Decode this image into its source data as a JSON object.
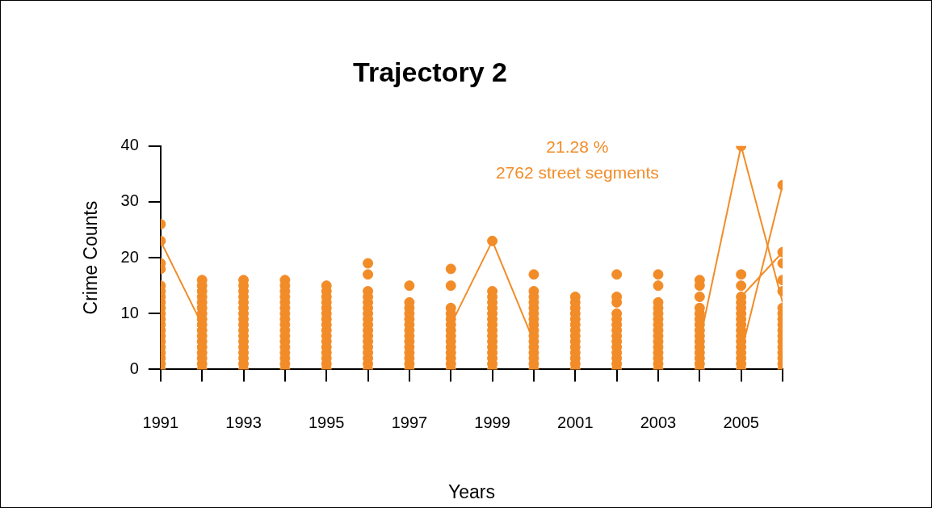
{
  "chart_data": {
    "type": "scatter",
    "title": "Trajectory 2",
    "xlabel": "Years",
    "ylabel": "Crime Counts",
    "annotations": [
      "21.28 %",
      "2762 street segments"
    ],
    "xlim": [
      1991,
      2006
    ],
    "ylim": [
      0,
      40
    ],
    "xticks": [
      1991,
      {
        "value": 1992,
        "label": null
      },
      1993,
      {
        "value": 1994,
        "label": null
      },
      1995,
      {
        "value": 1996,
        "label": null
      },
      1997,
      {
        "value": 1998,
        "label": null
      },
      1999,
      {
        "value": 2000,
        "label": null
      },
      2001,
      {
        "value": 2002,
        "label": null
      },
      2003,
      {
        "value": 2004,
        "label": null
      },
      2005,
      {
        "value": 2006,
        "label": null
      }
    ],
    "yticks": [
      0,
      10,
      20,
      30,
      40
    ],
    "grid": false,
    "legend": false,
    "marker": "circle",
    "series": [
      {
        "type": "line",
        "marker": "none",
        "color": "#f28c28",
        "x": [
          1991,
          1992
        ],
        "values": [
          23,
          8
        ]
      },
      {
        "type": "line",
        "marker": "none",
        "color": "#f28c28",
        "x": [
          1998,
          1999,
          2000
        ],
        "values": [
          8,
          23,
          5
        ]
      },
      {
        "type": "line",
        "marker": "none",
        "color": "#f28c28",
        "x": [
          2004,
          2005,
          2006
        ],
        "values": [
          5,
          40,
          12
        ]
      },
      {
        "type": "line",
        "marker": "none",
        "color": "#f28c28",
        "x": [
          2005,
          2006
        ],
        "values": [
          3,
          33
        ]
      },
      {
        "type": "line",
        "marker": "none",
        "color": "#f28c28",
        "x": [
          2005,
          2006
        ],
        "values": [
          13,
          21
        ]
      },
      {
        "color": "#f28c28",
        "x": [
          1991,
          1991,
          1991,
          1991,
          1991,
          1991,
          1991,
          1991,
          1991,
          1991,
          1991,
          1991,
          1991,
          1991,
          1991,
          1991,
          1991,
          1991,
          1991,
          1991
        ],
        "values": [
          0,
          1,
          2,
          3,
          4,
          5,
          6,
          7,
          8,
          9,
          10,
          11,
          12,
          13,
          14,
          15,
          18,
          19,
          23,
          26
        ]
      },
      {
        "color": "#f28c28",
        "x": [
          1992,
          1992,
          1992,
          1992,
          1992,
          1992,
          1992,
          1992,
          1992,
          1992,
          1992,
          1992,
          1992,
          1992,
          1992,
          1992,
          1992
        ],
        "values": [
          0,
          1,
          2,
          3,
          4,
          5,
          6,
          7,
          8,
          9,
          10,
          11,
          12,
          13,
          14,
          15,
          16
        ]
      },
      {
        "color": "#f28c28",
        "x": [
          1993,
          1993,
          1993,
          1993,
          1993,
          1993,
          1993,
          1993,
          1993,
          1993,
          1993,
          1993,
          1993,
          1993,
          1993,
          1993,
          1993
        ],
        "values": [
          0,
          1,
          2,
          3,
          4,
          5,
          6,
          7,
          8,
          9,
          10,
          11,
          12,
          13,
          14,
          15,
          16
        ]
      },
      {
        "color": "#f28c28",
        "x": [
          1994,
          1994,
          1994,
          1994,
          1994,
          1994,
          1994,
          1994,
          1994,
          1994,
          1994,
          1994,
          1994,
          1994,
          1994,
          1994,
          1994
        ],
        "values": [
          0,
          1,
          2,
          3,
          4,
          5,
          6,
          7,
          8,
          9,
          10,
          11,
          12,
          13,
          14,
          15,
          16
        ]
      },
      {
        "color": "#f28c28",
        "x": [
          1995,
          1995,
          1995,
          1995,
          1995,
          1995,
          1995,
          1995,
          1995,
          1995,
          1995,
          1995,
          1995,
          1995,
          1995,
          1995
        ],
        "values": [
          0,
          1,
          2,
          3,
          4,
          5,
          6,
          7,
          8,
          9,
          10,
          11,
          12,
          13,
          14,
          15
        ]
      },
      {
        "color": "#f28c28",
        "x": [
          1996,
          1996,
          1996,
          1996,
          1996,
          1996,
          1996,
          1996,
          1996,
          1996,
          1996,
          1996,
          1996,
          1996,
          1996,
          1996,
          1996
        ],
        "values": [
          0,
          1,
          2,
          3,
          4,
          5,
          6,
          7,
          8,
          9,
          10,
          11,
          12,
          13,
          14,
          17,
          19
        ]
      },
      {
        "color": "#f28c28",
        "x": [
          1997,
          1997,
          1997,
          1997,
          1997,
          1997,
          1997,
          1997,
          1997,
          1997,
          1997,
          1997,
          1997,
          1997
        ],
        "values": [
          0,
          1,
          2,
          3,
          4,
          5,
          6,
          7,
          8,
          9,
          10,
          11,
          12,
          15
        ]
      },
      {
        "color": "#f28c28",
        "x": [
          1998,
          1998,
          1998,
          1998,
          1998,
          1998,
          1998,
          1998,
          1998,
          1998,
          1998,
          1998,
          1998,
          1998
        ],
        "values": [
          0,
          1,
          2,
          3,
          4,
          5,
          6,
          7,
          8,
          9,
          10,
          11,
          15,
          18
        ]
      },
      {
        "color": "#f28c28",
        "x": [
          1999,
          1999,
          1999,
          1999,
          1999,
          1999,
          1999,
          1999,
          1999,
          1999,
          1999,
          1999,
          1999,
          1999,
          1999,
          1999
        ],
        "values": [
          0,
          1,
          2,
          3,
          4,
          5,
          6,
          7,
          8,
          9,
          10,
          11,
          12,
          13,
          14,
          23
        ]
      },
      {
        "color": "#f28c28",
        "x": [
          2000,
          2000,
          2000,
          2000,
          2000,
          2000,
          2000,
          2000,
          2000,
          2000,
          2000,
          2000,
          2000,
          2000,
          2000,
          2000
        ],
        "values": [
          0,
          1,
          2,
          3,
          4,
          5,
          6,
          7,
          8,
          9,
          10,
          11,
          12,
          13,
          14,
          17
        ]
      },
      {
        "color": "#f28c28",
        "x": [
          2001,
          2001,
          2001,
          2001,
          2001,
          2001,
          2001,
          2001,
          2001,
          2001,
          2001,
          2001,
          2001,
          2001
        ],
        "values": [
          0,
          1,
          2,
          3,
          4,
          5,
          6,
          7,
          8,
          9,
          10,
          11,
          12,
          13
        ]
      },
      {
        "color": "#f28c28",
        "x": [
          2002,
          2002,
          2002,
          2002,
          2002,
          2002,
          2002,
          2002,
          2002,
          2002,
          2002,
          2002,
          2002,
          2002
        ],
        "values": [
          0,
          1,
          2,
          3,
          4,
          5,
          6,
          7,
          8,
          9,
          10,
          12,
          13,
          17
        ]
      },
      {
        "color": "#f28c28",
        "x": [
          2003,
          2003,
          2003,
          2003,
          2003,
          2003,
          2003,
          2003,
          2003,
          2003,
          2003,
          2003,
          2003,
          2003,
          2003
        ],
        "values": [
          0,
          1,
          2,
          3,
          4,
          5,
          6,
          7,
          8,
          9,
          10,
          11,
          12,
          15,
          17
        ]
      },
      {
        "color": "#f28c28",
        "x": [
          2004,
          2004,
          2004,
          2004,
          2004,
          2004,
          2004,
          2004,
          2004,
          2004,
          2004,
          2004,
          2004,
          2004,
          2004
        ],
        "values": [
          0,
          1,
          2,
          3,
          4,
          5,
          6,
          7,
          8,
          9,
          10,
          11,
          13,
          15,
          16
        ]
      },
      {
        "color": "#f28c28",
        "x": [
          2005,
          2005,
          2005,
          2005,
          2005,
          2005,
          2005,
          2005,
          2005,
          2005,
          2005,
          2005,
          2005,
          2005,
          2005,
          2005,
          2005
        ],
        "values": [
          0,
          1,
          2,
          3,
          4,
          5,
          6,
          7,
          8,
          9,
          10,
          11,
          12,
          13,
          15,
          17,
          40
        ]
      },
      {
        "color": "#f28c28",
        "x": [
          2006,
          2006,
          2006,
          2006,
          2006,
          2006,
          2006,
          2006,
          2006,
          2006,
          2006,
          2006,
          2006,
          2006,
          2006,
          2006,
          2006
        ],
        "values": [
          0,
          1,
          2,
          3,
          4,
          5,
          6,
          7,
          8,
          9,
          10,
          11,
          14,
          16,
          19,
          21,
          33
        ]
      }
    ]
  }
}
